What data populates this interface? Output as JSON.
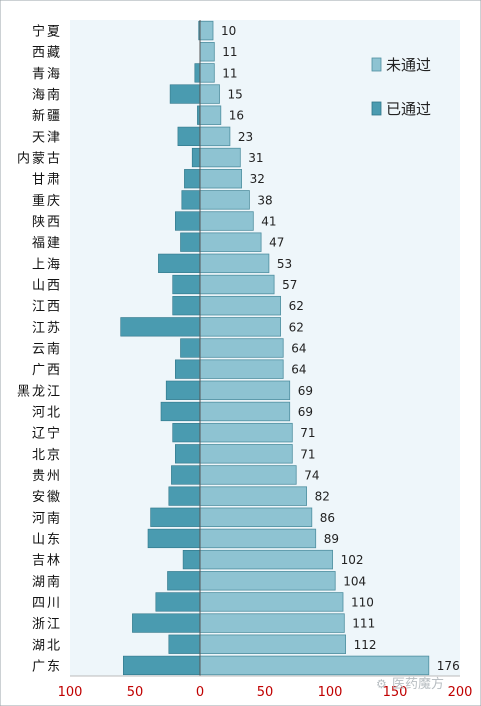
{
  "chart_data": {
    "type": "bar",
    "orientation": "horizontal",
    "layout": "diverging",
    "categories": [
      "宁夏",
      "西藏",
      "青海",
      "海南",
      "新疆",
      "天津",
      "内蒙古",
      "甘肃",
      "重庆",
      "陕西",
      "福建",
      "上海",
      "山西",
      "江西",
      "江苏",
      "云南",
      "广西",
      "黑龙江",
      "河北",
      "辽宁",
      "北京",
      "贵州",
      "安徽",
      "河南",
      "山东",
      "吉林",
      "湖南",
      "四川",
      "浙江",
      "湖北",
      "广东"
    ],
    "series": [
      {
        "name": "未通过",
        "color": "#8ec3d2",
        "values": [
          10,
          11,
          11,
          15,
          16,
          23,
          31,
          32,
          38,
          41,
          47,
          53,
          57,
          62,
          62,
          64,
          64,
          69,
          69,
          71,
          71,
          74,
          82,
          86,
          89,
          102,
          104,
          110,
          111,
          112,
          176
        ]
      },
      {
        "name": "已通过",
        "color": "#4a9bb0",
        "values": [
          1,
          0,
          4,
          23,
          2,
          17,
          6,
          12,
          14,
          19,
          15,
          32,
          21,
          21,
          61,
          15,
          19,
          26,
          30,
          21,
          19,
          22,
          24,
          38,
          40,
          13,
          25,
          34,
          52,
          24,
          59
        ]
      }
    ],
    "xlim": [
      -100,
      200
    ],
    "xticks": [
      {
        "value": -100,
        "label": "100"
      },
      {
        "value": -50,
        "label": "50"
      },
      {
        "value": 0,
        "label": "0"
      },
      {
        "value": 50,
        "label": "50"
      },
      {
        "value": 100,
        "label": "100"
      },
      {
        "value": 150,
        "label": "150"
      },
      {
        "value": 200,
        "label": "200"
      }
    ],
    "legend_position": "top-right",
    "plot_background": "#eef6fa",
    "tick_label_color": "#c00000",
    "watermark": "医药魔方"
  }
}
